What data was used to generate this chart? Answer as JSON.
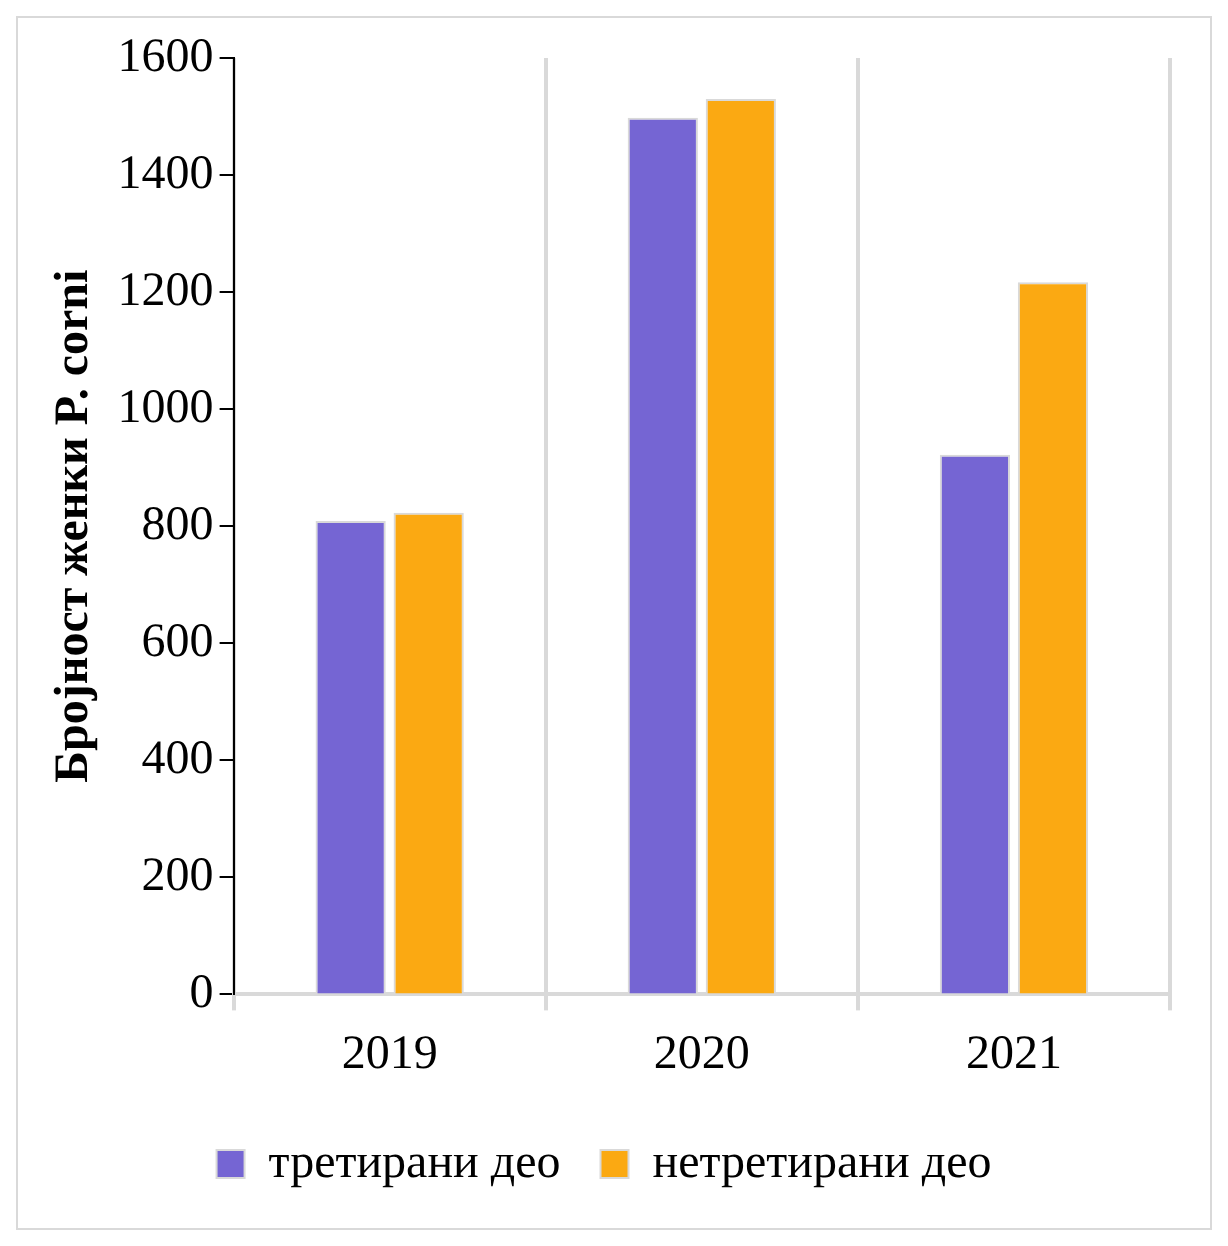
{
  "chart_data": {
    "type": "bar",
    "ylabel": "Бројност женки P. corni",
    "categories": [
      "2019",
      "2020",
      "2021"
    ],
    "series": [
      {
        "name": "третирани део",
        "color": "#7565d3",
        "values": [
          809,
          1498,
          922
        ]
      },
      {
        "name": "нетретирани део",
        "color": "#fba912",
        "values": [
          823,
          1530,
          1217
        ]
      }
    ],
    "ylim": [
      0,
      1600
    ],
    "yticks": [
      0,
      200,
      400,
      600,
      800,
      1000,
      1200,
      1400,
      1600
    ],
    "grid": "x",
    "legend": "bottom"
  }
}
